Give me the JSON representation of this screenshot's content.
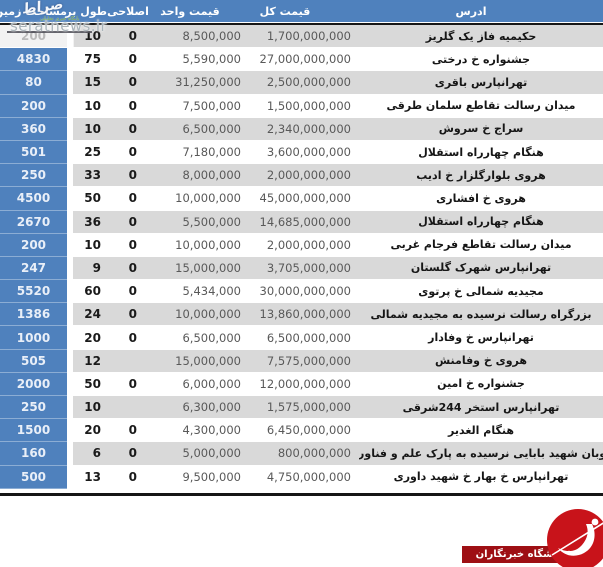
{
  "chart_data": {
    "type": "table",
    "title": "",
    "columns": [
      "مساحت زمین",
      "طول بر",
      "اصلاحی",
      "قیمت واحد",
      "قیمت کل",
      "ادرس"
    ],
    "rows": [
      {
        "area": "200",
        "length": "10",
        "correction": "0",
        "unit_price": "8,500,000",
        "total_price": "1,700,000,000",
        "address": "حکیمیه فاز یک گلریز"
      },
      {
        "area": "4830",
        "length": "75",
        "correction": "0",
        "unit_price": "5,590,000",
        "total_price": "27,000,000,000",
        "address": "جشنواره خ درختی"
      },
      {
        "area": "80",
        "length": "15",
        "correction": "0",
        "unit_price": "31,250,000",
        "total_price": "2,500,000,000",
        "address": "تهرانپارس باقری"
      },
      {
        "area": "200",
        "length": "10",
        "correction": "0",
        "unit_price": "7,500,000",
        "total_price": "1,500,000,000",
        "address": "میدان رسالت تقاطع سلمان طرقی"
      },
      {
        "area": "360",
        "length": "10",
        "correction": "0",
        "unit_price": "6,500,000",
        "total_price": "2,340,000,000",
        "address": "سراج خ سروش"
      },
      {
        "area": "501",
        "length": "25",
        "correction": "0",
        "unit_price": "7,180,000",
        "total_price": "3,600,000,000",
        "address": "هنگام چهارراه استقلال"
      },
      {
        "area": "250",
        "length": "33",
        "correction": "0",
        "unit_price": "8,000,000",
        "total_price": "2,000,000,000",
        "address": "هروی بلوارگلزار خ ادیب"
      },
      {
        "area": "4500",
        "length": "50",
        "correction": "0",
        "unit_price": "10,000,000",
        "total_price": "45,000,000,000",
        "address": "هروی خ افشاری"
      },
      {
        "area": "2670",
        "length": "36",
        "correction": "0",
        "unit_price": "5,500,000",
        "total_price": "14,685,000,000",
        "address": "هنگام چهارراه استقلال"
      },
      {
        "area": "200",
        "length": "10",
        "correction": "0",
        "unit_price": "10,000,000",
        "total_price": "2,000,000,000",
        "address": "میدان رسالت تقاطع فرجام غربی"
      },
      {
        "area": "247",
        "length": "9",
        "correction": "0",
        "unit_price": "15,000,000",
        "total_price": "3,705,000,000",
        "address": "تهرانپارس شهرک گلستان"
      },
      {
        "area": "5520",
        "length": "60",
        "correction": "0",
        "unit_price": "5,434,000",
        "total_price": "30,000,000,000",
        "address": "مجیدیه شمالی خ پرتوی"
      },
      {
        "area": "1386",
        "length": "24",
        "correction": "0",
        "unit_price": "10,000,000",
        "total_price": "13,860,000,000",
        "address": "بزرگراه رسالت نرسیده به مجیدیه شمالی"
      },
      {
        "area": "1000",
        "length": "20",
        "correction": "0",
        "unit_price": "6,500,000",
        "total_price": "6,500,000,000",
        "address": "تهرانپارس خ وفادار"
      },
      {
        "area": "505",
        "length": "12",
        "correction": "",
        "unit_price": "15,000,000",
        "total_price": "7,575,000,000",
        "address": "هروی خ وفامنش"
      },
      {
        "area": "2000",
        "length": "50",
        "correction": "0",
        "unit_price": "6,000,000",
        "total_price": "12,000,000,000",
        "address": "جشنواره خ امین"
      },
      {
        "area": "250",
        "length": "10",
        "correction": "",
        "unit_price": "6,300,000",
        "total_price": "1,575,000,000",
        "address": "تهرانپارس استخر 244شرقی"
      },
      {
        "area": "1500",
        "length": "20",
        "correction": "0",
        "unit_price": "4,300,000",
        "total_price": "6,450,000,000",
        "address": "هنگام الغدیر"
      },
      {
        "area": "160",
        "length": "6",
        "correction": "0",
        "unit_price": "5,000,000",
        "total_price": "800,000,000",
        "address": "اتوبان شهید بابایی نرسیده به پارک علم و فناوری"
      },
      {
        "area": "500",
        "length": "13",
        "correction": "0",
        "unit_price": "9,500,000",
        "total_price": "4,750,000,000",
        "address": "تهرانپارس خ بهار خ شهید داوری"
      }
    ]
  },
  "watermark": {
    "site": "seratnews.ir",
    "logo_text": "صراط",
    "tagline": "پایگاه خبری تحلیلی"
  },
  "footer": {
    "press_badge": "باشگاه خبرنگاران"
  },
  "colors": {
    "header_blue": "#4f81bd",
    "row_alt_gray": "#d9d9d9",
    "row_white": "#ffffff",
    "price_text_gray": "#595959",
    "dark_text": "#161616",
    "badge_red": "#c8131a",
    "badge_banner_red": "#9e0f14"
  }
}
